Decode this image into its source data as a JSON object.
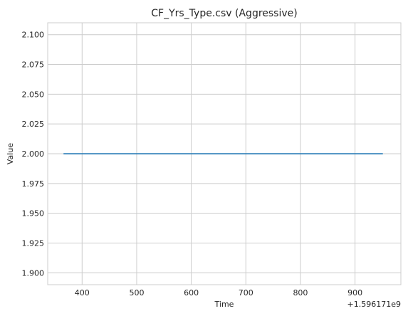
{
  "chart_data": {
    "type": "line",
    "title": "CF_Yrs_Type.csv (Aggressive)",
    "xlabel": "Time",
    "ylabel": "Value",
    "x_offset_label": "+1.596171e9",
    "xlim": [
      337,
      984
    ],
    "ylim": [
      1.89,
      2.11
    ],
    "x_ticks": [
      400,
      500,
      600,
      700,
      800,
      900
    ],
    "x_tick_labels": [
      "400",
      "500",
      "600",
      "700",
      "800",
      "900"
    ],
    "y_ticks": [
      1.9,
      1.925,
      1.95,
      1.975,
      2.0,
      2.025,
      2.05,
      2.075,
      2.1
    ],
    "y_tick_labels": [
      "1.900",
      "1.925",
      "1.950",
      "1.975",
      "2.000",
      "2.025",
      "2.050",
      "2.075",
      "2.100"
    ],
    "grid": true,
    "series": [
      {
        "color": "#1f77b4",
        "x": [
          367,
          950
        ],
        "y": [
          2.0,
          2.0
        ]
      }
    ]
  }
}
